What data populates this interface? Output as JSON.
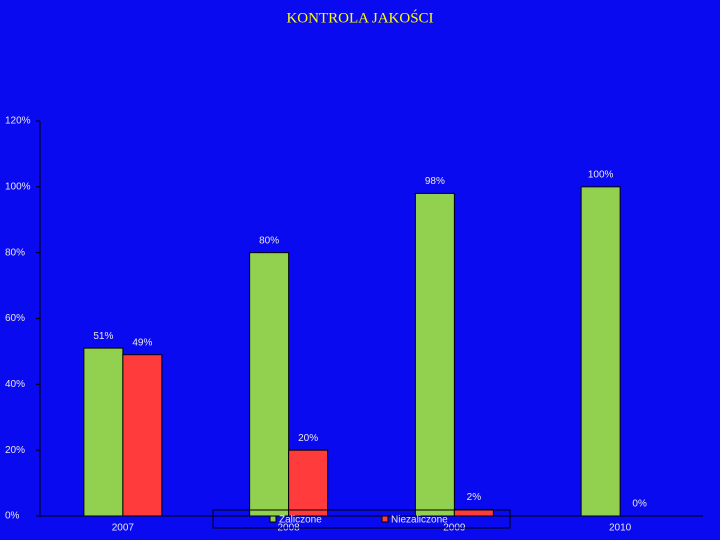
{
  "chart_data": {
    "type": "bar",
    "title": "KONTROLA JAKOŚCI",
    "categories": [
      "2007",
      "2008",
      "2009",
      "2010"
    ],
    "series": [
      {
        "name": "Zaliczone",
        "color": "#92d050",
        "values": [
          51,
          80,
          98,
          100
        ],
        "value_labels": [
          "51%",
          "80%",
          "98%",
          "100%"
        ]
      },
      {
        "name": "Niezaliczone",
        "color": "#ff3b3b",
        "values": [
          49,
          20,
          2,
          0
        ],
        "value_labels": [
          "49%",
          "20%",
          "2%",
          "0%"
        ]
      }
    ],
    "ylim": [
      0,
      120
    ],
    "yticks": [
      {
        "value": 0,
        "label": "0%"
      },
      {
        "value": 20,
        "label": "20%"
      },
      {
        "value": 40,
        "label": "40%"
      },
      {
        "value": 60,
        "label": "60%"
      },
      {
        "value": 80,
        "label": "80%"
      },
      {
        "value": 100,
        "label": "100%"
      },
      {
        "value": 120,
        "label": "120%"
      }
    ],
    "grid": false,
    "legend": "bottom"
  }
}
